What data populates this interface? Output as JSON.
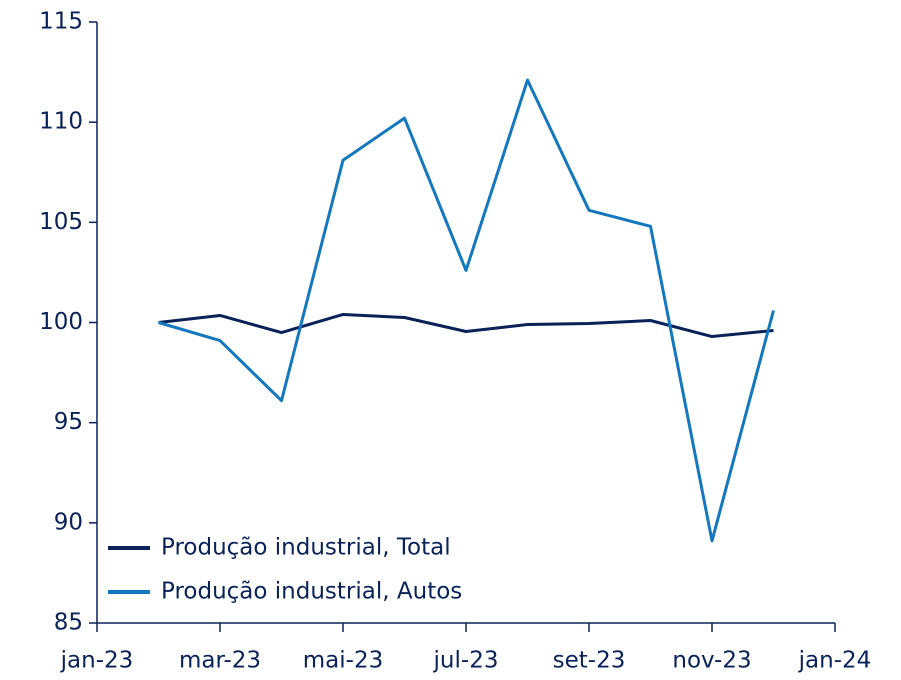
{
  "chart_data": {
    "type": "line",
    "categories": [
      "jan-23",
      null,
      "mar-23",
      null,
      "mai-23",
      null,
      "jul-23",
      null,
      "set-23",
      null,
      "nov-23",
      null,
      "jan-24"
    ],
    "series": [
      {
        "name": "Produção industrial, Total",
        "color": "#0a2258",
        "values": [
          null,
          100,
          100.35,
          99.5,
          100.4,
          100.25,
          99.55,
          99.9,
          99.95,
          100.1,
          99.3,
          99.6,
          null
        ]
      },
      {
        "name": "Produção industrial, Autos",
        "color": "#1478be",
        "values": [
          null,
          100,
          99.1,
          96.1,
          108.1,
          110.2,
          102.6,
          112.1,
          105.6,
          104.8,
          89.1,
          100.6,
          null
        ]
      }
    ],
    "ylim": [
      85,
      115
    ],
    "yticks": [
      85,
      90,
      95,
      100,
      105,
      110,
      115
    ],
    "grid": false,
    "legend": "lower left"
  }
}
